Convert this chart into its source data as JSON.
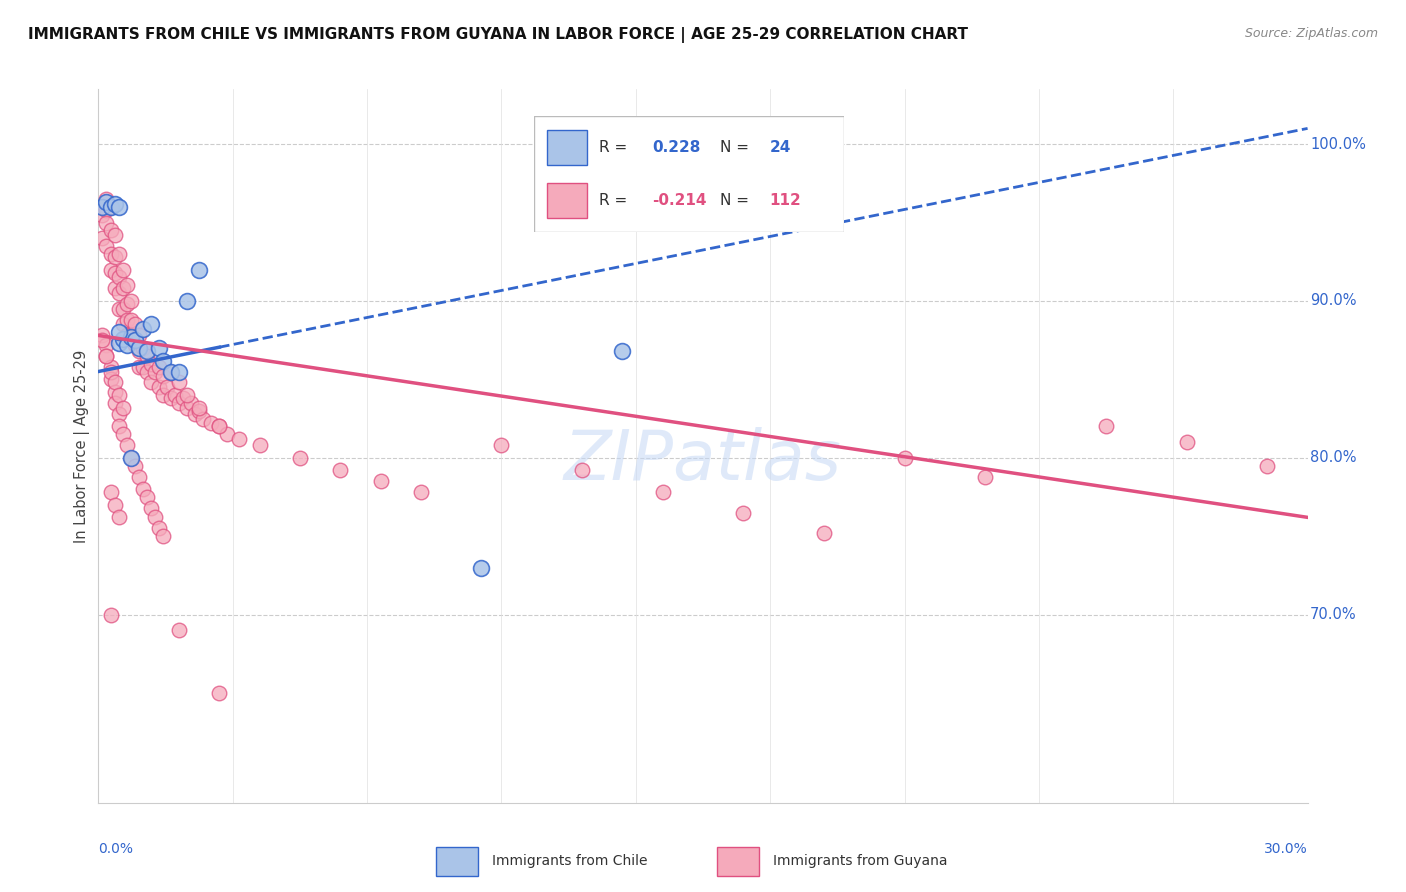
{
  "title": "IMMIGRANTS FROM CHILE VS IMMIGRANTS FROM GUYANA IN LABOR FORCE | AGE 25-29 CORRELATION CHART",
  "source": "Source: ZipAtlas.com",
  "ylabel": "In Labor Force | Age 25-29",
  "right_yticks": [
    0.7,
    0.8,
    0.9,
    1.0
  ],
  "right_yticklabels": [
    "70.0%",
    "80.0%",
    "90.0%",
    "100.0%"
  ],
  "xlim": [
    0.0,
    0.3
  ],
  "ylim": [
    0.58,
    1.035
  ],
  "chile_color": "#aac4e8",
  "guyana_color": "#f5aabb",
  "chile_line_color": "#3366cc",
  "guyana_line_color": "#e05080",
  "chile_R": 0.228,
  "chile_N": 24,
  "guyana_R": -0.214,
  "guyana_N": 112,
  "legend_chile_label": "Immigrants from Chile",
  "legend_guyana_label": "Immigrants from Guyana",
  "watermark": "ZIPatlas",
  "chile_line_x0": 0.0,
  "chile_line_y0": 0.855,
  "chile_line_x1": 0.3,
  "chile_line_y1": 1.01,
  "chile_line_solid_end": 0.03,
  "guyana_line_x0": 0.0,
  "guyana_line_y0": 0.878,
  "guyana_line_x1": 0.3,
  "guyana_line_y1": 0.762,
  "chile_scatter_x": [
    0.001,
    0.002,
    0.003,
    0.004,
    0.005,
    0.005,
    0.006,
    0.007,
    0.008,
    0.009,
    0.01,
    0.011,
    0.012,
    0.013,
    0.015,
    0.016,
    0.018,
    0.02,
    0.022,
    0.025,
    0.095,
    0.13,
    0.005,
    0.008
  ],
  "chile_scatter_y": [
    0.96,
    0.963,
    0.96,
    0.962,
    0.96,
    0.873,
    0.876,
    0.872,
    0.877,
    0.875,
    0.87,
    0.882,
    0.868,
    0.885,
    0.87,
    0.862,
    0.855,
    0.855,
    0.9,
    0.92,
    0.73,
    0.868,
    0.88,
    0.8
  ],
  "guyana_scatter_x": [
    0.001,
    0.001,
    0.001,
    0.002,
    0.002,
    0.002,
    0.002,
    0.003,
    0.003,
    0.003,
    0.003,
    0.004,
    0.004,
    0.004,
    0.004,
    0.005,
    0.005,
    0.005,
    0.005,
    0.006,
    0.006,
    0.006,
    0.006,
    0.007,
    0.007,
    0.007,
    0.007,
    0.008,
    0.008,
    0.008,
    0.009,
    0.009,
    0.01,
    0.01,
    0.01,
    0.011,
    0.011,
    0.012,
    0.012,
    0.013,
    0.013,
    0.014,
    0.015,
    0.015,
    0.016,
    0.016,
    0.017,
    0.018,
    0.019,
    0.02,
    0.021,
    0.022,
    0.023,
    0.024,
    0.025,
    0.026,
    0.028,
    0.03,
    0.032,
    0.035,
    0.001,
    0.002,
    0.002,
    0.003,
    0.003,
    0.004,
    0.004,
    0.005,
    0.005,
    0.006,
    0.007,
    0.008,
    0.009,
    0.01,
    0.011,
    0.012,
    0.013,
    0.014,
    0.015,
    0.016,
    0.018,
    0.02,
    0.022,
    0.025,
    0.03,
    0.04,
    0.05,
    0.06,
    0.07,
    0.08,
    0.1,
    0.12,
    0.14,
    0.16,
    0.18,
    0.2,
    0.22,
    0.25,
    0.27,
    0.29,
    0.001,
    0.002,
    0.003,
    0.004,
    0.005,
    0.006,
    0.003,
    0.004,
    0.005,
    0.003,
    0.02,
    0.03
  ],
  "guyana_scatter_y": [
    0.96,
    0.955,
    0.94,
    0.965,
    0.958,
    0.95,
    0.935,
    0.96,
    0.945,
    0.93,
    0.92,
    0.942,
    0.928,
    0.918,
    0.908,
    0.93,
    0.915,
    0.905,
    0.895,
    0.92,
    0.908,
    0.895,
    0.885,
    0.91,
    0.898,
    0.888,
    0.878,
    0.9,
    0.888,
    0.878,
    0.885,
    0.872,
    0.878,
    0.868,
    0.858,
    0.87,
    0.858,
    0.865,
    0.855,
    0.86,
    0.848,
    0.855,
    0.858,
    0.845,
    0.852,
    0.84,
    0.845,
    0.838,
    0.84,
    0.835,
    0.838,
    0.832,
    0.835,
    0.828,
    0.83,
    0.825,
    0.822,
    0.82,
    0.815,
    0.812,
    0.878,
    0.872,
    0.865,
    0.858,
    0.85,
    0.842,
    0.835,
    0.828,
    0.82,
    0.815,
    0.808,
    0.8,
    0.795,
    0.788,
    0.78,
    0.775,
    0.768,
    0.762,
    0.755,
    0.75,
    0.855,
    0.848,
    0.84,
    0.832,
    0.82,
    0.808,
    0.8,
    0.792,
    0.785,
    0.778,
    0.808,
    0.792,
    0.778,
    0.765,
    0.752,
    0.8,
    0.788,
    0.82,
    0.81,
    0.795,
    0.875,
    0.865,
    0.855,
    0.848,
    0.84,
    0.832,
    0.778,
    0.77,
    0.762,
    0.7,
    0.69,
    0.65
  ]
}
